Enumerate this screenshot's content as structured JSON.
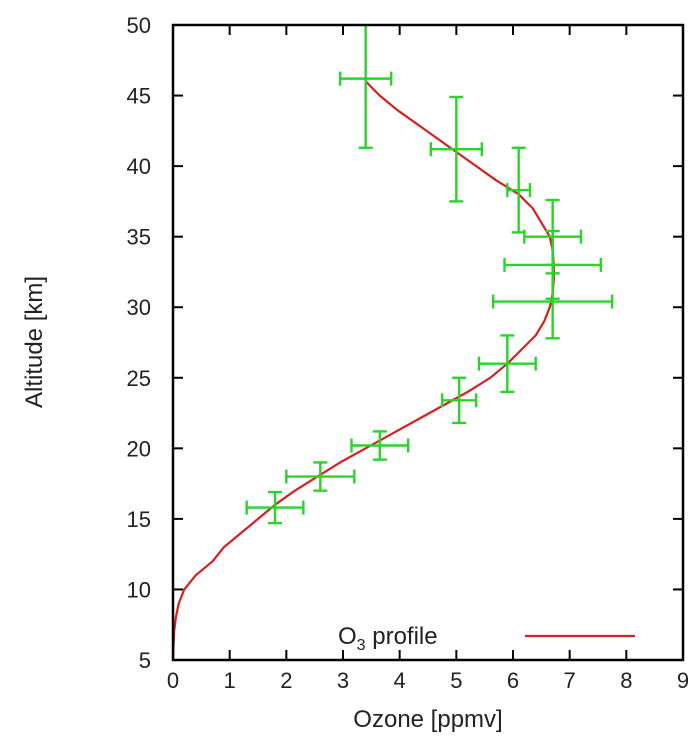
{
  "chart_data": {
    "type": "line",
    "xlabel": "Ozone [ppmv]",
    "ylabel": "Altitude [km]",
    "xlim": [
      0,
      9
    ],
    "ylim": [
      5,
      50
    ],
    "xticks": [
      0,
      1,
      2,
      3,
      4,
      5,
      6,
      7,
      8,
      9
    ],
    "yticks": [
      5,
      10,
      15,
      20,
      25,
      30,
      35,
      40,
      45,
      50
    ],
    "grid": false,
    "legend": {
      "placement": "bottom-right",
      "entries": [
        {
          "prefix": "O",
          "subscript": "3",
          "suffix": " profile"
        }
      ]
    },
    "colors": {
      "profile": "#d42020",
      "measurements": "#2bd42b",
      "axis": "#000000"
    },
    "series": [
      {
        "points": [
          [
            0.0,
            5.0
          ],
          [
            0.02,
            7.0
          ],
          [
            0.05,
            8.0
          ],
          [
            0.1,
            9.0
          ],
          [
            0.2,
            10.0
          ],
          [
            0.4,
            11.0
          ],
          [
            0.7,
            12.0
          ],
          [
            0.9,
            13.0
          ],
          [
            1.2,
            14.0
          ],
          [
            1.5,
            15.0
          ],
          [
            1.8,
            16.0
          ],
          [
            2.15,
            17.0
          ],
          [
            2.55,
            18.0
          ],
          [
            2.95,
            19.0
          ],
          [
            3.4,
            20.0
          ],
          [
            3.85,
            21.0
          ],
          [
            4.3,
            22.0
          ],
          [
            4.75,
            23.0
          ],
          [
            5.2,
            24.0
          ],
          [
            5.6,
            25.0
          ],
          [
            5.9,
            26.0
          ],
          [
            6.15,
            27.0
          ],
          [
            6.4,
            28.0
          ],
          [
            6.55,
            29.0
          ],
          [
            6.65,
            30.0
          ],
          [
            6.7,
            31.0
          ],
          [
            6.72,
            32.0
          ],
          [
            6.72,
            33.0
          ],
          [
            6.7,
            34.0
          ],
          [
            6.65,
            35.0
          ],
          [
            6.5,
            36.0
          ],
          [
            6.35,
            37.0
          ],
          [
            6.1,
            38.0
          ],
          [
            5.7,
            39.0
          ],
          [
            5.35,
            40.0
          ],
          [
            5.0,
            41.0
          ],
          [
            4.65,
            42.0
          ],
          [
            4.3,
            43.0
          ],
          [
            3.95,
            44.0
          ],
          [
            3.65,
            45.0
          ],
          [
            3.4,
            46.0
          ]
        ]
      },
      {
        "points": [
          {
            "x": 1.8,
            "y": 15.8,
            "xerr": 0.5,
            "yerr": 1.1
          },
          {
            "x": 2.6,
            "y": 18.0,
            "xerr": 0.6,
            "yerr": 1.0
          },
          {
            "x": 3.65,
            "y": 20.2,
            "xerr": 0.5,
            "yerr": 1.0
          },
          {
            "x": 5.05,
            "y": 23.4,
            "xerr": 0.3,
            "yerr": 1.6
          },
          {
            "x": 5.9,
            "y": 26.0,
            "xerr": 0.5,
            "yerr": 2.0
          },
          {
            "x": 6.7,
            "y": 30.4,
            "xerr": 1.05,
            "yerr": 2.6
          },
          {
            "x": 6.7,
            "y": 33.0,
            "xerr": 0.85,
            "yerr": 2.4
          },
          {
            "x": 6.7,
            "y": 35.0,
            "xerr": 0.5,
            "yerr": 2.6
          },
          {
            "x": 6.1,
            "y": 38.3,
            "xerr": 0.2,
            "yerr": 3.0
          },
          {
            "x": 5.0,
            "y": 41.2,
            "xerr": 0.45,
            "yerr": 3.7
          },
          {
            "x": 3.4,
            "y": 46.2,
            "xerr": 0.45,
            "yerr": 4.9
          }
        ]
      }
    ]
  }
}
